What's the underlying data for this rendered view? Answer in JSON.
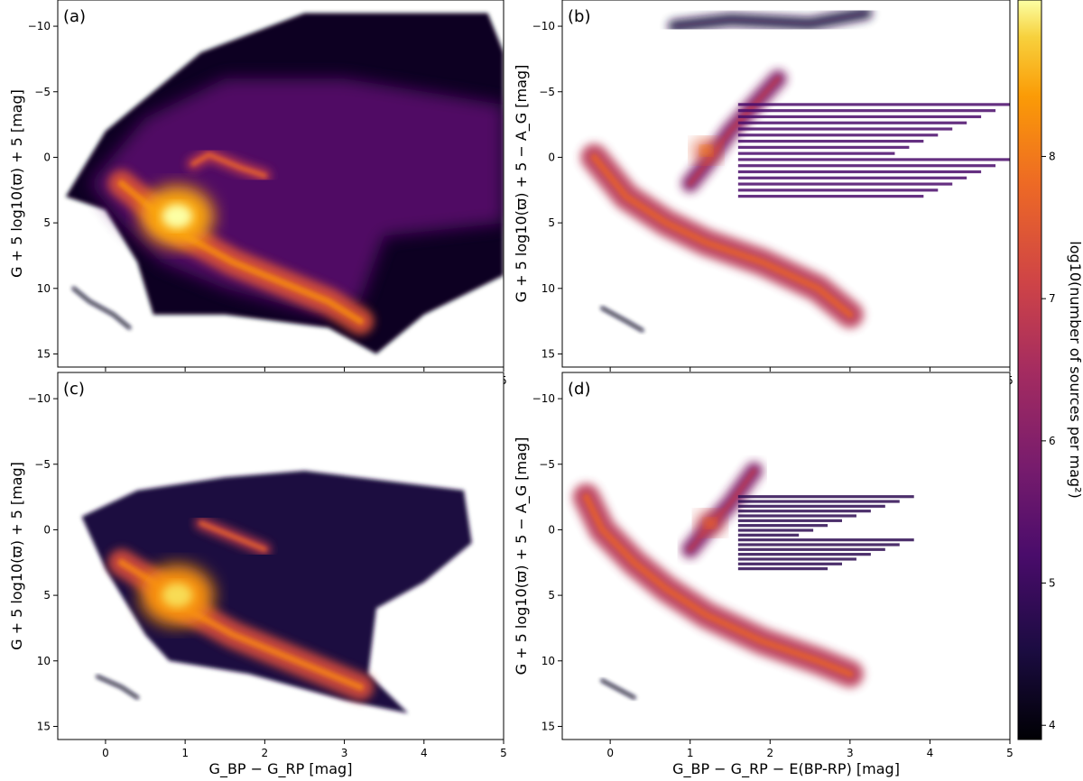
{
  "chart_data": [
    {
      "type": "heatmap",
      "panel_label": "(a)",
      "ylabel": "G + 5 log10(ϖ) + 5 [mag]",
      "xlabel": "",
      "xlim": [
        -0.6,
        5
      ],
      "ylim": [
        16,
        -12
      ],
      "x_ticks": [
        0,
        1,
        2,
        3,
        4,
        5
      ],
      "y_ticks": [
        -10,
        -5,
        0,
        5,
        10,
        15
      ],
      "grid": false,
      "density_regions": [
        {
          "kind": "envelope",
          "outline": [
            [
              -0.5,
              3
            ],
            [
              0.0,
              -2
            ],
            [
              1.2,
              -8
            ],
            [
              2.5,
              -11
            ],
            [
              4.8,
              -11
            ],
            [
              5,
              -8
            ],
            [
              5,
              9
            ],
            [
              4.0,
              12
            ],
            [
              3.4,
              15
            ],
            [
              2.8,
              13
            ],
            [
              1.5,
              12
            ],
            [
              0.6,
              12
            ],
            [
              0.4,
              8
            ],
            [
              0.0,
              4
            ]
          ],
          "log_density": 4.2
        },
        {
          "kind": "envelope",
          "outline": [
            [
              -0.2,
              2
            ],
            [
              0.5,
              -3
            ],
            [
              1.5,
              -6
            ],
            [
              3.0,
              -6
            ],
            [
              5,
              -4
            ],
            [
              5,
              5
            ],
            [
              3.5,
              6
            ],
            [
              3.2,
              11
            ],
            [
              2.7,
              12
            ],
            [
              1.5,
              10
            ],
            [
              0.7,
              8
            ],
            [
              0.2,
              5
            ]
          ],
          "log_density": 5.4
        },
        {
          "kind": "main_sequence",
          "path": [
            [
              0.2,
              2
            ],
            [
              0.6,
              4
            ],
            [
              1.0,
              6
            ],
            [
              1.6,
              8
            ],
            [
              2.2,
              9.5
            ],
            [
              2.8,
              11
            ],
            [
              3.2,
              12.5
            ]
          ],
          "log_density": 7.4
        },
        {
          "kind": "red_clump",
          "path": [
            [
              1.1,
              0.5
            ],
            [
              1.3,
              -0.2
            ],
            [
              1.7,
              0.8
            ],
            [
              2.0,
              1.4
            ]
          ],
          "log_density": 7.0
        },
        {
          "kind": "peak",
          "center": [
            0.9,
            4.5
          ],
          "log_density": 8.5
        },
        {
          "kind": "white_dwarfs",
          "path": [
            [
              -0.4,
              10
            ],
            [
              -0.2,
              11
            ],
            [
              0.1,
              12
            ],
            [
              0.3,
              13
            ]
          ],
          "log_density": 4.3
        }
      ]
    },
    {
      "type": "heatmap",
      "panel_label": "(b)",
      "ylabel": "G + 5 log10(ϖ) + 5 − A_G [mag]",
      "xlabel": "",
      "xlim": [
        -0.6,
        5
      ],
      "ylim": [
        16,
        -12
      ],
      "x_ticks": [
        0,
        1,
        2,
        3,
        4,
        5
      ],
      "y_ticks": [
        -10,
        -5,
        0,
        5,
        10,
        15
      ],
      "grid": false,
      "density_regions": [
        {
          "kind": "upper_streak",
          "path": [
            [
              0.8,
              -10
            ],
            [
              1.5,
              -10.5
            ],
            [
              2.5,
              -10.2
            ],
            [
              3.2,
              -11
            ]
          ],
          "log_density": 4.5
        },
        {
          "kind": "main_sequence",
          "path": [
            [
              -0.2,
              0
            ],
            [
              0.2,
              3
            ],
            [
              0.7,
              5
            ],
            [
              1.2,
              6.5
            ],
            [
              1.9,
              8
            ],
            [
              2.6,
              10
            ],
            [
              3.0,
              12
            ]
          ],
          "log_density": 6.8
        },
        {
          "kind": "giant_branch",
          "path": [
            [
              1.0,
              2
            ],
            [
              1.2,
              0.5
            ],
            [
              1.5,
              -2
            ],
            [
              1.8,
              -4
            ],
            [
              2.1,
              -6
            ]
          ],
          "log_density": 6.0
        },
        {
          "kind": "red_clump",
          "center": [
            1.2,
            -0.5
          ],
          "log_density": 7.5
        },
        {
          "kind": "horizontal_streaks",
          "x_range": [
            1.6,
            5
          ],
          "y_range": [
            -4,
            3
          ],
          "log_density": 5.2
        },
        {
          "kind": "white_dwarfs",
          "path": [
            [
              -0.1,
              11.5
            ],
            [
              0.2,
              12.5
            ],
            [
              0.4,
              13.2
            ]
          ],
          "log_density": 4.3
        }
      ]
    },
    {
      "type": "heatmap",
      "panel_label": "(c)",
      "ylabel": "G + 5 log10(ϖ) + 5 [mag]",
      "xlabel": "G_BP − G_RP [mag]",
      "xlim": [
        -0.6,
        5
      ],
      "ylim": [
        16,
        -12
      ],
      "x_ticks": [
        0,
        1,
        2,
        3,
        4,
        5
      ],
      "y_ticks": [
        -10,
        -5,
        0,
        5,
        10,
        15
      ],
      "grid": false,
      "density_regions": [
        {
          "kind": "envelope",
          "outline": [
            [
              -0.3,
              -1
            ],
            [
              0.4,
              -3
            ],
            [
              1.5,
              -4
            ],
            [
              2.5,
              -4.5
            ],
            [
              4.5,
              -3
            ],
            [
              4.6,
              1
            ],
            [
              4.0,
              4
            ],
            [
              3.4,
              6
            ],
            [
              3.3,
              11
            ],
            [
              3.8,
              14
            ],
            [
              3.0,
              13
            ],
            [
              1.8,
              11
            ],
            [
              0.8,
              10
            ],
            [
              0.5,
              8
            ],
            [
              0.0,
              3
            ]
          ],
          "log_density": 4.5
        },
        {
          "kind": "main_sequence",
          "path": [
            [
              0.2,
              2.5
            ],
            [
              0.6,
              4
            ],
            [
              1.0,
              6
            ],
            [
              1.6,
              8
            ],
            [
              2.2,
              9.5
            ],
            [
              2.8,
              11
            ],
            [
              3.2,
              12
            ]
          ],
          "log_density": 7.3
        },
        {
          "kind": "red_clump",
          "path": [
            [
              1.2,
              -0.5
            ],
            [
              1.6,
              0.5
            ],
            [
              2.0,
              1.5
            ]
          ],
          "log_density": 7.0
        },
        {
          "kind": "peak",
          "center": [
            0.9,
            5
          ],
          "log_density": 8.3
        },
        {
          "kind": "white_dwarfs",
          "path": [
            [
              -0.1,
              11.2
            ],
            [
              0.2,
              12
            ],
            [
              0.4,
              12.8
            ]
          ],
          "log_density": 4.3
        }
      ]
    },
    {
      "type": "heatmap",
      "panel_label": "(d)",
      "ylabel": "G + 5 log10(ϖ) + 5 − A_G [mag]",
      "xlabel": "G_BP − G_RP − E(BP-RP) [mag]",
      "xlim": [
        -0.6,
        5
      ],
      "ylim": [
        16,
        -12
      ],
      "x_ticks": [
        0,
        1,
        2,
        3,
        4,
        5
      ],
      "y_ticks": [
        -10,
        -5,
        0,
        5,
        10,
        15
      ],
      "grid": false,
      "density_regions": [
        {
          "kind": "main_sequence",
          "path": [
            [
              -0.3,
              -2.5
            ],
            [
              -0.1,
              0
            ],
            [
              0.3,
              2.5
            ],
            [
              0.7,
              4.5
            ],
            [
              1.2,
              6.5
            ],
            [
              1.9,
              8.5
            ],
            [
              2.6,
              10
            ],
            [
              3.0,
              11
            ]
          ],
          "log_density": 6.8
        },
        {
          "kind": "giant_branch",
          "path": [
            [
              1.0,
              1.5
            ],
            [
              1.2,
              0
            ],
            [
              1.5,
              -2
            ],
            [
              1.8,
              -4.5
            ]
          ],
          "log_density": 6.0
        },
        {
          "kind": "red_clump",
          "center": [
            1.25,
            -0.5
          ],
          "log_density": 7.2
        },
        {
          "kind": "horizontal_streaks",
          "x_range": [
            1.6,
            3.8
          ],
          "y_range": [
            -2.5,
            3
          ],
          "log_density": 4.8
        },
        {
          "kind": "white_dwarfs",
          "path": [
            [
              -0.1,
              11.5
            ],
            [
              0.3,
              12.8
            ]
          ],
          "log_density": 4.3
        }
      ]
    }
  ],
  "colorbar": {
    "label": "log10(number of sources per mag²)",
    "range": [
      3.9,
      9.1
    ],
    "ticks": [
      4,
      5,
      6,
      7,
      8
    ],
    "colormap": "inferno"
  }
}
